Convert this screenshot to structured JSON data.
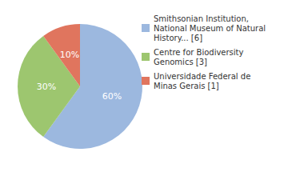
{
  "chart_data": {
    "type": "pie",
    "categories": [
      "Smithsonian Institution, National Museum of Natural History... [6]",
      "Centre for Biodiversity Genomics [3]",
      "Universidade Federal de Minas Gerais [1]"
    ],
    "values": [
      60,
      30,
      10
    ],
    "value_labels": [
      "60%",
      "30%",
      "10%"
    ],
    "colors": [
      "#9cb8df",
      "#9dc66f",
      "#e0755e"
    ],
    "data_labels": true,
    "legend": "right"
  }
}
